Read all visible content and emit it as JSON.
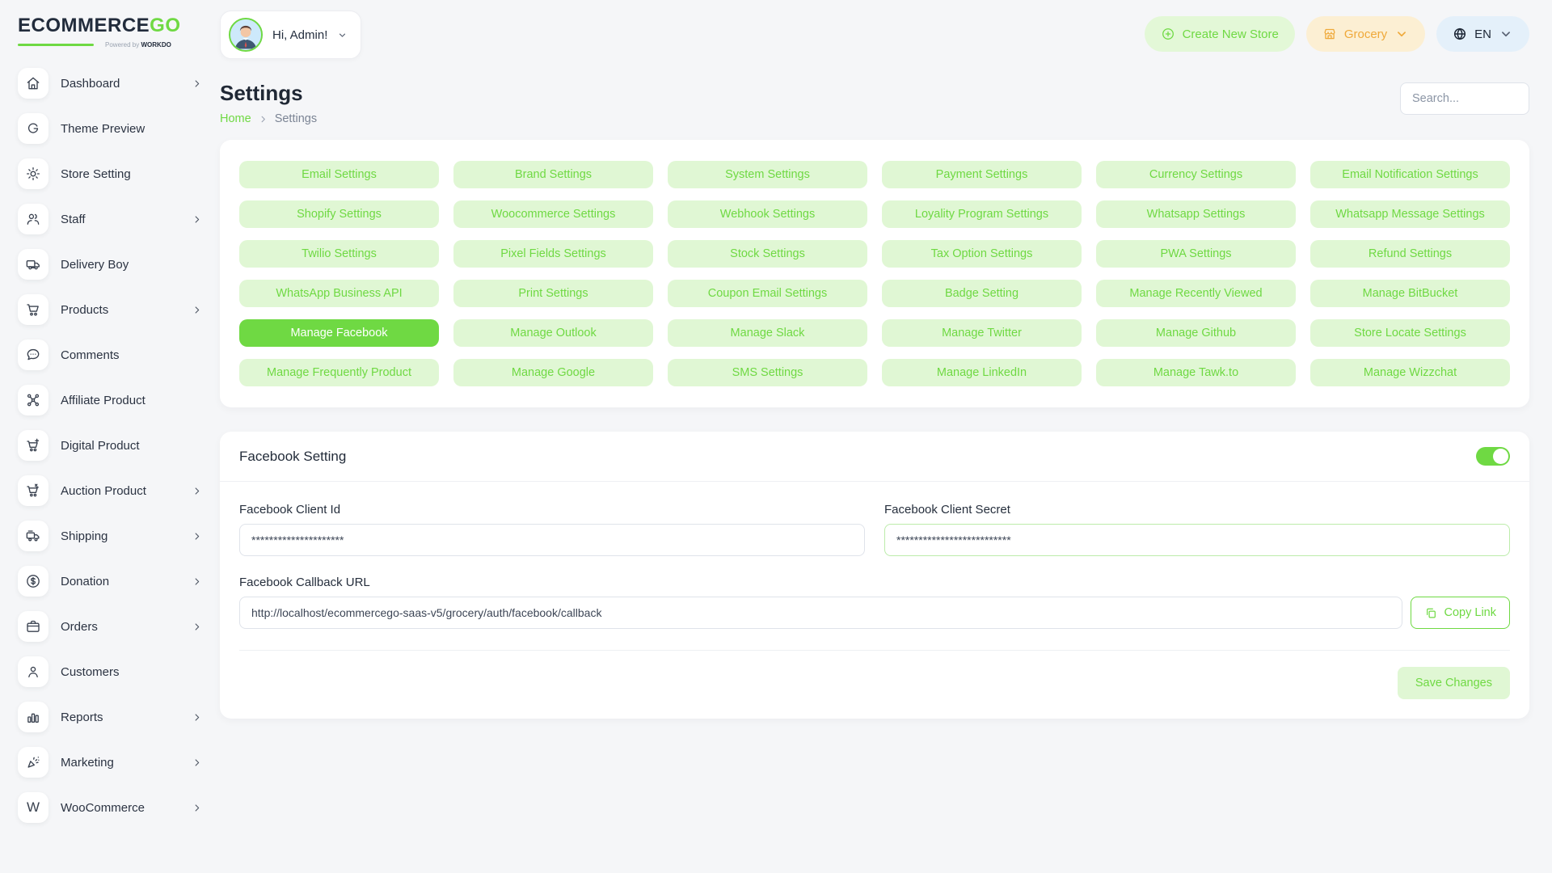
{
  "brand": {
    "name_primary": "ECOMMERCE",
    "name_secondary": "GO",
    "powered_prefix": "Powered by",
    "powered_brand": "WORKDO"
  },
  "header": {
    "greeting": "Hi, Admin!",
    "create_store_label": "Create New Store",
    "store_name": "Grocery",
    "language": "EN"
  },
  "page": {
    "title": "Settings",
    "breadcrumb_home": "Home",
    "breadcrumb_current": "Settings",
    "search_placeholder": "Search..."
  },
  "sidebar": {
    "items": [
      {
        "id": "dashboard",
        "label": "Dashboard",
        "icon": "home-icon",
        "chevron": true
      },
      {
        "id": "theme-preview",
        "label": "Theme Preview",
        "icon": "theme-preview-icon",
        "chevron": false
      },
      {
        "id": "store-setting",
        "label": "Store Setting",
        "icon": "gear-icon",
        "chevron": false
      },
      {
        "id": "staff",
        "label": "Staff",
        "icon": "users-icon",
        "chevron": true
      },
      {
        "id": "delivery-boy",
        "label": "Delivery Boy",
        "icon": "truck-icon",
        "chevron": false
      },
      {
        "id": "products",
        "label": "Products",
        "icon": "cart-icon",
        "chevron": true
      },
      {
        "id": "comments",
        "label": "Comments",
        "icon": "chat-icon",
        "chevron": false
      },
      {
        "id": "affiliate-product",
        "label": "Affiliate Product",
        "icon": "affiliate-icon",
        "chevron": false
      },
      {
        "id": "digital-product",
        "label": "Digital Product",
        "icon": "cart-plus-icon",
        "chevron": false
      },
      {
        "id": "auction-product",
        "label": "Auction Product",
        "icon": "auction-cart-icon",
        "chevron": true
      },
      {
        "id": "shipping",
        "label": "Shipping",
        "icon": "shipping-truck-icon",
        "chevron": true
      },
      {
        "id": "donation",
        "label": "Donation",
        "icon": "dollar-circle-icon",
        "chevron": true
      },
      {
        "id": "orders",
        "label": "Orders",
        "icon": "briefcase-icon",
        "chevron": true
      },
      {
        "id": "customers",
        "label": "Customers",
        "icon": "user-icon",
        "chevron": false
      },
      {
        "id": "reports",
        "label": "Reports",
        "icon": "bar-chart-icon",
        "chevron": true
      },
      {
        "id": "marketing",
        "label": "Marketing",
        "icon": "party-popper-icon",
        "chevron": true
      },
      {
        "id": "woocommerce",
        "label": "WooCommerce",
        "icon": "woocommerce-icon",
        "chevron": true
      }
    ]
  },
  "settings_nav": {
    "active": "Manage Facebook",
    "items": [
      "Email Settings",
      "Brand Settings",
      "System Settings",
      "Payment Settings",
      "Currency Settings",
      "Email Notification Settings",
      "Shopify Settings",
      "Woocommerce Settings",
      "Webhook Settings",
      "Loyality Program Settings",
      "Whatsapp Settings",
      "Whatsapp Message Settings",
      "Twilio Settings",
      "Pixel Fields Settings",
      "Stock Settings",
      "Tax Option Settings",
      "PWA Settings",
      "Refund Settings",
      "WhatsApp Business API",
      "Print Settings",
      "Coupon Email Settings",
      "Badge Setting",
      "Manage Recently Viewed",
      "Manage BitBucket",
      "Manage Facebook",
      "Manage Outlook",
      "Manage Slack",
      "Manage Twitter",
      "Manage Github",
      "Store Locate Settings",
      "Manage Frequently Product",
      "Manage Google",
      "SMS Settings",
      "Manage LinkedIn",
      "Manage Tawk.to",
      "Manage Wizzchat"
    ]
  },
  "facebook": {
    "section_title": "Facebook Setting",
    "enabled": true,
    "client_id_label": "Facebook Client Id",
    "client_id_value": "*********************",
    "client_secret_label": "Facebook Client Secret",
    "client_secret_value": "**************************",
    "callback_label": "Facebook Callback URL",
    "callback_value": "http://localhost/ecommercego-saas-v5/grocery/auth/facebook/callback",
    "copy_link_label": "Copy Link",
    "save_label": "Save Changes"
  },
  "colors": {
    "accent_green": "#6fd943",
    "green_light_bg": "#e0f7d4",
    "orange": "#efa93a",
    "orange_light_bg": "#fcefd3",
    "blue_light_bg": "#e4f0fa",
    "dark_text": "#232c3a"
  }
}
